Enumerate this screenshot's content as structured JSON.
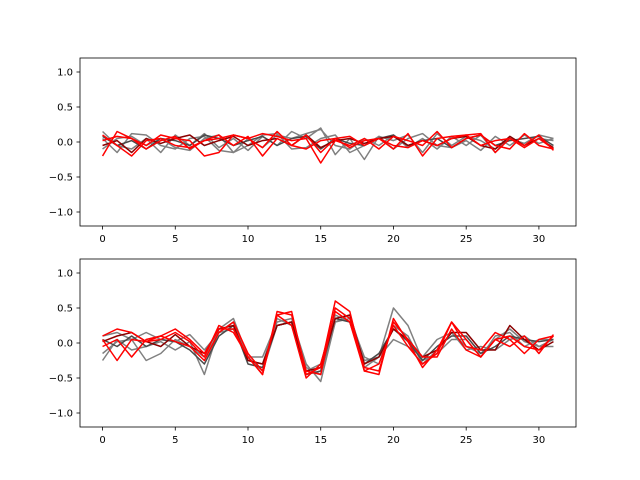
{
  "chart_data": [
    {
      "type": "line",
      "xlim": [
        -1.55,
        32.55
      ],
      "ylim": [
        -1.2,
        1.2
      ],
      "xticks": [
        0,
        5,
        10,
        15,
        20,
        25,
        30
      ],
      "yticks": [
        -1.0,
        -0.5,
        0.0,
        0.5,
        1.0
      ],
      "ytick_labels": [
        "−1.0",
        "−0.5",
        "0.0",
        "0.5",
        "1.0"
      ],
      "grid": false,
      "legend": "none",
      "series": [
        {
          "color": "#808080",
          "values": [
            0.15,
            -0.05,
            -0.1,
            0.05,
            -0.15,
            0.1,
            -0.05,
            0.12,
            -0.08,
            0.05,
            -0.12,
            0.08,
            -0.05,
            0.15,
            0.05,
            0.2,
            -0.18,
            0.05,
            -0.25,
            0.08,
            0.02,
            0.1,
            -0.15,
            0.12,
            -0.05,
            0.08,
            0.02,
            -0.1,
            0.05,
            -0.02,
            0.1,
            0.05
          ]
        },
        {
          "color": "#808080",
          "values": [
            0.05,
            -0.15,
            0.12,
            0.1,
            -0.05,
            -0.1,
            0.05,
            0.08,
            -0.12,
            -0.15,
            0.05,
            -0.08,
            0.1,
            0.05,
            0.12,
            0.18,
            -0.05,
            -0.1,
            0.05,
            -0.05,
            0.1,
            -0.08,
            0.05,
            -0.1,
            0.08,
            -0.05,
            0.1,
            -0.15,
            0.08,
            -0.05,
            0.05,
            0.02
          ]
        },
        {
          "color": "#808080",
          "values": [
            -0.1,
            0.05,
            0.08,
            -0.05,
            0.05,
            -0.08,
            -0.12,
            0.05,
            0.1,
            -0.15,
            -0.05,
            0.1,
            0.12,
            -0.1,
            -0.08,
            0.05,
            0.1,
            -0.15,
            -0.05,
            0.08,
            -0.1,
            0.05,
            0.12,
            -0.05,
            -0.08,
            0.02,
            -0.12,
            0.08,
            -0.05,
            0.1,
            -0.02,
            0.05
          ]
        },
        {
          "color": "#4a4a4a",
          "values": [
            0.08,
            -0.05,
            0.02,
            -0.1,
            0.05,
            0.02,
            -0.05,
            0.1,
            0.05,
            -0.05,
            0.02,
            0.08,
            -0.05,
            0.05,
            0.08,
            -0.1,
            0.05,
            -0.02,
            -0.05,
            0.05,
            0.1,
            -0.05,
            0.02,
            0.05,
            -0.08,
            0.05,
            0.1,
            -0.05,
            0.02,
            0.05,
            0.08,
            -0.05
          ]
        },
        {
          "color": "#8b0000",
          "values": [
            -0.05,
            0.02,
            -0.15,
            0.05,
            -0.02,
            0.05,
            0.1,
            -0.05,
            0.02,
            0.08,
            -0.05,
            0.02,
            0.05,
            -0.05,
            0.1,
            -0.08,
            0.02,
            0.05,
            -0.02,
            0.05,
            0.08,
            -0.05,
            0.02,
            -0.05,
            0.05,
            0.08,
            -0.05,
            -0.1,
            0.08,
            -0.05,
            0.05,
            -0.08
          ]
        },
        {
          "color": "#ff0000",
          "values": [
            -0.2,
            0.15,
            0.05,
            -0.05,
            0.1,
            0.05,
            0.02,
            -0.2,
            -0.15,
            0.1,
            0.05,
            0.12,
            0.08,
            0.02,
            0.05,
            -0.3,
            0.02,
            -0.05,
            0.05,
            -0.1,
            0.08,
            0.02,
            -0.05,
            0.15,
            -0.08,
            0.05,
            0.1,
            -0.05,
            -0.1,
            0.12,
            -0.05,
            -0.1
          ]
        },
        {
          "color": "#ff0000",
          "values": [
            0.1,
            -0.05,
            -0.2,
            0.02,
            0.05,
            -0.05,
            -0.08,
            0.02,
            0.05,
            0.1,
            0.05,
            -0.08,
            0.15,
            -0.05,
            0.1,
            -0.15,
            0.05,
            0.08,
            -0.05,
            0.05,
            -0.1,
            0.12,
            -0.2,
            0.05,
            0.08,
            0.1,
            0.12,
            -0.15,
            0.05,
            -0.08,
            0.05,
            -0.1
          ]
        },
        {
          "color": "#ff0000",
          "values": [
            0.02,
            0.08,
            0.05,
            -0.1,
            0.02,
            0.08,
            -0.1,
            0.02,
            0.1,
            -0.05,
            0.08,
            -0.2,
            0.05,
            -0.05,
            -0.1,
            0.02,
            0.05,
            -0.08,
            0.02,
            0.05,
            -0.05,
            -0.08,
            0.02,
            -0.05,
            0.05,
            0.1,
            -0.05,
            0.02,
            0.05,
            -0.05,
            0.1,
            -0.12
          ]
        }
      ]
    },
    {
      "type": "line",
      "xlim": [
        -1.55,
        32.55
      ],
      "ylim": [
        -1.2,
        1.2
      ],
      "xticks": [
        0,
        5,
        10,
        15,
        20,
        25,
        30
      ],
      "yticks": [
        -1.0,
        -0.5,
        0.0,
        0.5,
        1.0
      ],
      "ytick_labels": [
        "−1.0",
        "−0.5",
        "0.0",
        "0.5",
        "1.0"
      ],
      "grid": false,
      "legend": "none",
      "series": [
        {
          "color": "#808080",
          "values": [
            -0.25,
            0.05,
            -0.1,
            -0.05,
            0.02,
            -0.1,
            0.02,
            -0.45,
            0.2,
            0.35,
            -0.2,
            -0.2,
            0.3,
            0.35,
            -0.3,
            -0.55,
            0.3,
            0.4,
            -0.25,
            -0.2,
            0.5,
            0.25,
            -0.25,
            -0.15,
            0.05,
            0.05,
            -0.2,
            0.1,
            0.15,
            -0.05,
            0.05,
            0.05
          ]
        },
        {
          "color": "#808080",
          "values": [
            0.1,
            0.15,
            0.05,
            0.15,
            0.05,
            0.02,
            0.12,
            -0.1,
            0.15,
            0.2,
            -0.2,
            -0.4,
            0.25,
            0.3,
            -0.35,
            -0.45,
            0.3,
            0.35,
            -0.2,
            -0.3,
            0.25,
            0.1,
            -0.3,
            -0.1,
            0.15,
            -0.05,
            -0.15,
            0.05,
            0.2,
            0.02,
            -0.05,
            0.05
          ]
        },
        {
          "color": "#808080",
          "values": [
            -0.15,
            0.02,
            0.05,
            -0.25,
            -0.15,
            0.05,
            -0.05,
            -0.2,
            0.15,
            0.3,
            -0.25,
            -0.3,
            0.35,
            0.25,
            -0.4,
            -0.3,
            0.4,
            0.3,
            -0.35,
            -0.2,
            0.05,
            -0.05,
            -0.2,
            0.05,
            0.15,
            -0.1,
            -0.05,
            -0.1,
            0.05,
            0.1,
            -0.05,
            -0.05
          ]
        },
        {
          "color": "#4a4a4a",
          "values": [
            0.05,
            -0.05,
            0.1,
            -0.05,
            0.05,
            0.02,
            -0.1,
            -0.3,
            0.1,
            0.25,
            -0.3,
            -0.35,
            0.25,
            0.3,
            -0.45,
            -0.4,
            0.35,
            0.3,
            -0.3,
            -0.15,
            0.2,
            0.02,
            -0.25,
            -0.05,
            0.1,
            0.1,
            -0.15,
            -0.05,
            0.1,
            0.05,
            0.02,
            0.05
          ]
        },
        {
          "color": "#8b0000",
          "values": [
            0.02,
            0.1,
            0.15,
            0.02,
            -0.05,
            0.12,
            -0.05,
            -0.15,
            0.2,
            0.25,
            -0.25,
            -0.3,
            0.25,
            0.3,
            -0.4,
            -0.35,
            0.35,
            0.4,
            -0.3,
            -0.2,
            0.2,
            0.05,
            -0.2,
            -0.1,
            0.15,
            0.15,
            -0.1,
            -0.1,
            0.25,
            0.05,
            -0.1,
            0.02
          ]
        },
        {
          "color": "#ff0000",
          "values": [
            0.1,
            0.2,
            0.15,
            0.02,
            0.05,
            0.15,
            0.02,
            -0.2,
            0.25,
            0.15,
            -0.2,
            -0.45,
            0.4,
            0.25,
            -0.5,
            -0.3,
            0.45,
            0.3,
            -0.4,
            -0.45,
            0.35,
            0.02,
            -0.35,
            -0.1,
            0.3,
            0.05,
            -0.2,
            0.05,
            0.1,
            -0.05,
            -0.1,
            0.1
          ]
        },
        {
          "color": "#ff0000",
          "values": [
            0.05,
            -0.25,
            0.05,
            0.02,
            0.1,
            0.02,
            -0.05,
            -0.25,
            0.15,
            0.3,
            -0.15,
            -0.4,
            0.4,
            0.45,
            -0.45,
            -0.35,
            0.6,
            0.45,
            -0.4,
            -0.3,
            0.25,
            -0.05,
            -0.3,
            -0.15,
            0.3,
            -0.05,
            -0.1,
            0.15,
            0.05,
            -0.15,
            0.05,
            0.1
          ]
        },
        {
          "color": "#ff0000",
          "values": [
            -0.05,
            0.05,
            -0.2,
            0.05,
            0.1,
            0.2,
            0.05,
            -0.15,
            0.2,
            0.2,
            -0.2,
            -0.45,
            0.45,
            0.4,
            -0.4,
            -0.45,
            0.5,
            0.35,
            -0.35,
            -0.4,
            0.3,
            0.05,
            -0.2,
            -0.2,
            0.2,
            -0.1,
            -0.2,
            0.05,
            -0.05,
            0.1,
            -0.15,
            0.12
          ]
        }
      ]
    }
  ]
}
